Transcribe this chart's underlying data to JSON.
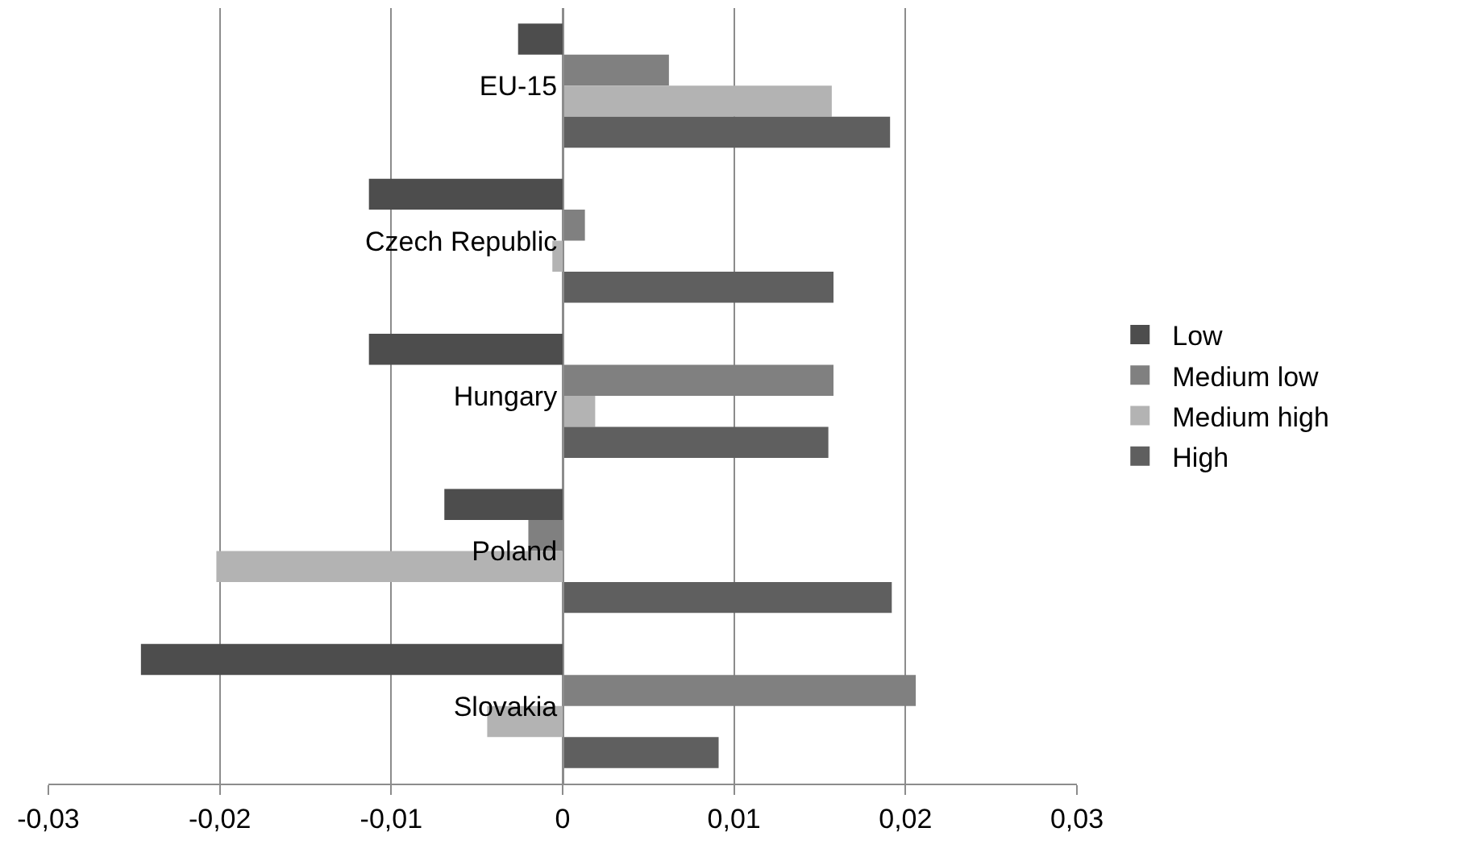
{
  "chart_data": {
    "type": "bar",
    "orientation": "horizontal",
    "categories": [
      "EU-15",
      "Czech Republic",
      "Hungary",
      "Poland",
      "Slovakia"
    ],
    "series": [
      {
        "name": "Low",
        "color": "#4d4d4d",
        "values": [
          -0.0026,
          -0.0113,
          -0.0113,
          -0.0069,
          -0.0246
        ]
      },
      {
        "name": "Medium low",
        "color": "#808080",
        "values": [
          0.0062,
          0.0013,
          0.0158,
          -0.002,
          0.0206
        ]
      },
      {
        "name": "Medium high",
        "color": "#b3b3b3",
        "values": [
          0.0157,
          -0.0006,
          0.0019,
          -0.0202,
          -0.0044
        ]
      },
      {
        "name": "High",
        "color": "#5f5f5f",
        "values": [
          0.0191,
          0.0158,
          0.0155,
          0.0192,
          0.0091
        ]
      }
    ],
    "xlim": [
      -0.03,
      0.03
    ],
    "xticks": [
      {
        "value": -0.03,
        "label": "-0,03"
      },
      {
        "value": -0.02,
        "label": "-0,02"
      },
      {
        "value": -0.01,
        "label": "-0,01"
      },
      0,
      {
        "value": 0.01,
        "label": "0,01"
      },
      {
        "value": 0.02,
        "label": "0,02"
      },
      {
        "value": 0.03,
        "label": "0,03"
      }
    ],
    "grid": "x",
    "legend": "right"
  }
}
